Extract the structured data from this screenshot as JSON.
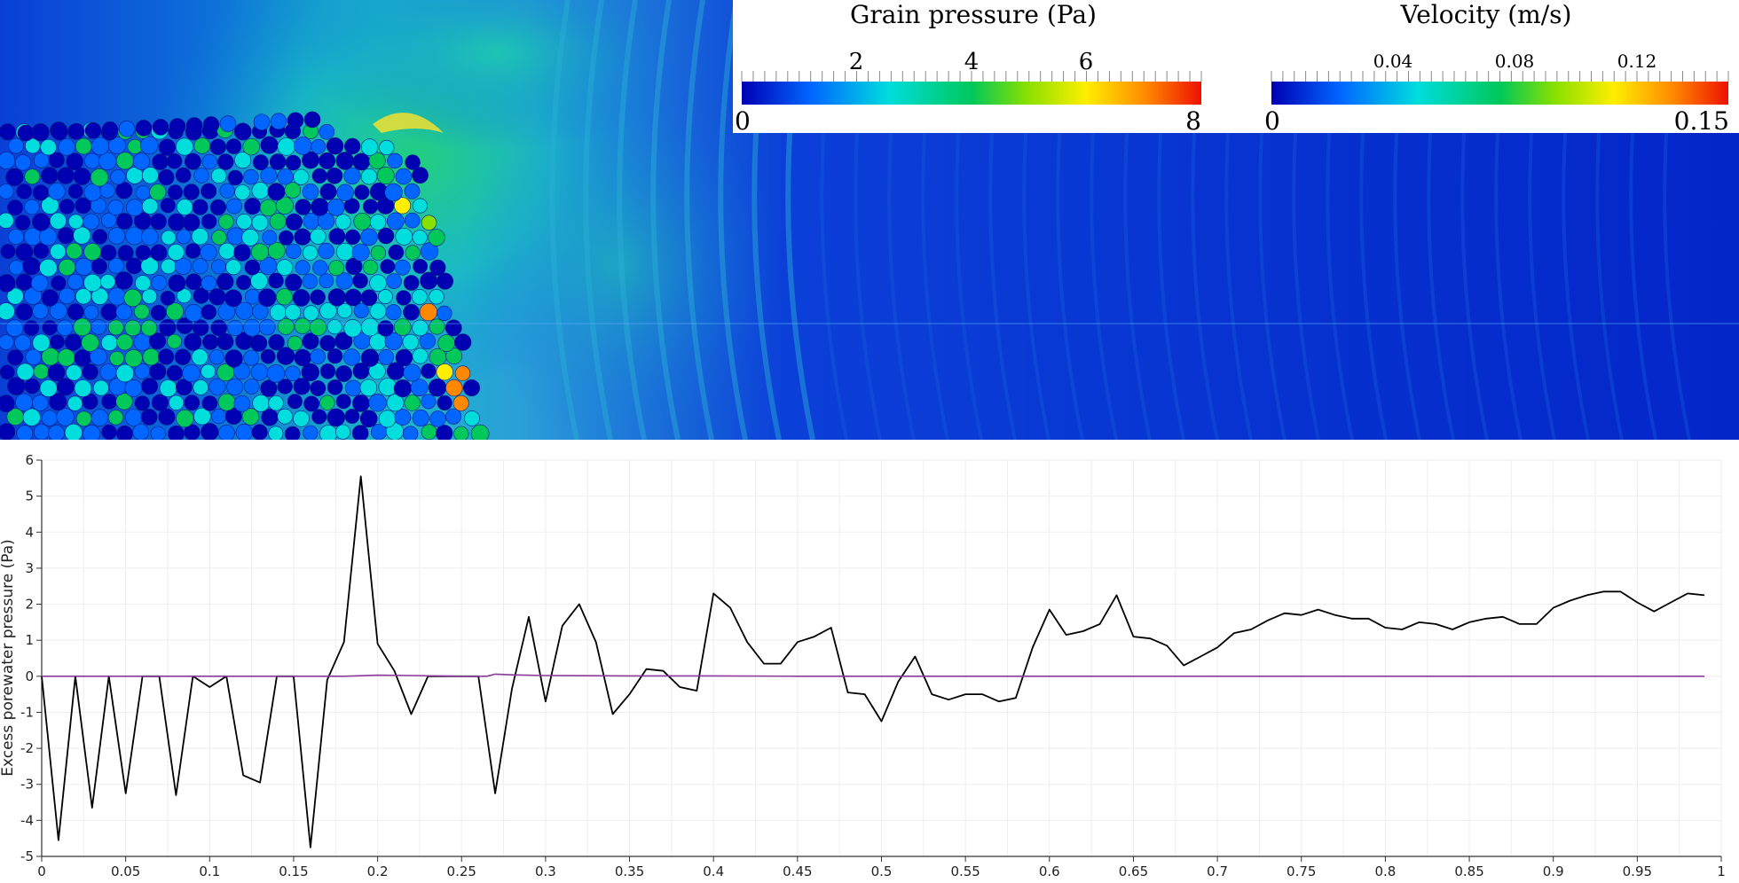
{
  "simulation_view": {
    "legends": [
      {
        "title": "Grain pressure (Pa)",
        "min_label": "0",
        "max_label": "8",
        "range": [
          0,
          8
        ],
        "ticks": [
          "2",
          "4",
          "6"
        ],
        "colors": [
          "#0000b3",
          "#0066ff",
          "#00dddd",
          "#00c85a",
          "#88e000",
          "#ffee00",
          "#ff8800",
          "#ee1100"
        ]
      },
      {
        "title": "Velocity (m/s)",
        "min_label": "0",
        "max_label": "0.15",
        "range": [
          0,
          0.15
        ],
        "ticks": [
          "0.04",
          "0.08",
          "0.12"
        ],
        "colors": [
          "#0000b3",
          "#0066ff",
          "#00dddd",
          "#00c85a",
          "#88e000",
          "#ffee00",
          "#ff8800",
          "#ee1100"
        ]
      }
    ]
  },
  "chart_data": {
    "type": "line",
    "title": "",
    "xlabel": "",
    "ylabel": "Excess porewater pressure (Pa)",
    "xlim": [
      0,
      1
    ],
    "ylim": [
      -5,
      6
    ],
    "grid": true,
    "x_tick_labels": [
      "0",
      "0.05",
      "0.1",
      "0.15",
      "0.2",
      "0.25",
      "0.3",
      "0.35",
      "0.4",
      "0.45",
      "0.5",
      "0.55",
      "0.6",
      "0.65",
      "0.7",
      "0.75",
      "0.8",
      "0.85",
      "0.9",
      "0.95",
      "1"
    ],
    "y_tick_labels": [
      "-5",
      "-4",
      "-3",
      "-2",
      "-1",
      "0",
      "1",
      "2",
      "3",
      "4",
      "5",
      "6"
    ],
    "series": [
      {
        "color": "#000000",
        "x": [
          0,
          0.01,
          0.02,
          0.03,
          0.04,
          0.05,
          0.06,
          0.07,
          0.08,
          0.09,
          0.1,
          0.11,
          0.12,
          0.13,
          0.14,
          0.15,
          0.16,
          0.17,
          0.18,
          0.19,
          0.2,
          0.21,
          0.22,
          0.23,
          0.24,
          0.25,
          0.26,
          0.27,
          0.28,
          0.29,
          0.3,
          0.31,
          0.32,
          0.33,
          0.34,
          0.35,
          0.36,
          0.37,
          0.38,
          0.39,
          0.4,
          0.41,
          0.42,
          0.43,
          0.44,
          0.45,
          0.46,
          0.47,
          0.48,
          0.49,
          0.5,
          0.51,
          0.52,
          0.53,
          0.54,
          0.55,
          0.56,
          0.57,
          0.58,
          0.59,
          0.6,
          0.61,
          0.62,
          0.63,
          0.64,
          0.65,
          0.66,
          0.67,
          0.68,
          0.69,
          0.7,
          0.71,
          0.72,
          0.73,
          0.74,
          0.75,
          0.76,
          0.77,
          0.78,
          0.79,
          0.8,
          0.81,
          0.82,
          0.83,
          0.84,
          0.85,
          0.86,
          0.87,
          0.88,
          0.89,
          0.9,
          0.91,
          0.92,
          0.93,
          0.94,
          0.95,
          0.96,
          0.97,
          0.98,
          0.99
        ],
        "y": [
          0,
          -4.55,
          0,
          -3.65,
          0,
          -3.25,
          0,
          0,
          -3.3,
          0,
          -0.3,
          0,
          -2.75,
          -2.95,
          0,
          0,
          -4.75,
          -0.1,
          0.95,
          5.55,
          0.9,
          0.15,
          -1.05,
          0,
          0,
          0,
          0,
          -3.25,
          -0.35,
          1.65,
          -0.7,
          1.4,
          2,
          0.95,
          -1.05,
          -0.5,
          0.2,
          0.15,
          -0.3,
          -0.4,
          2.3,
          1.9,
          0.95,
          0.35,
          0.35,
          0.95,
          1.1,
          1.35,
          -0.45,
          -0.5,
          -1.25,
          -0.15,
          0.55,
          -0.5,
          -0.65,
          -0.5,
          -0.5,
          -0.7,
          -0.6,
          0.8,
          1.85,
          1.15,
          1.25,
          1.45,
          2.25,
          1.1,
          1.05,
          0.85,
          0.3,
          0.55,
          0.8,
          1.2,
          1.3,
          1.55,
          1.75,
          1.7,
          1.85,
          1.7,
          1.6,
          1.6,
          1.35,
          1.3,
          1.5,
          1.45,
          1.3,
          1.5,
          1.6,
          1.65,
          1.45,
          1.45,
          1.9,
          2.1,
          2.25,
          2.35,
          2.35,
          2.05,
          1.8,
          2.05,
          2.3,
          2.25
        ]
      },
      {
        "color": "#8a3a9a",
        "x": [
          0,
          0.05,
          0.1,
          0.15,
          0.18,
          0.2,
          0.22,
          0.25,
          0.265,
          0.27,
          0.28,
          0.3,
          0.35,
          0.4,
          0.45,
          0.5,
          0.6,
          0.7,
          0.8,
          0.9,
          0.99
        ],
        "y": [
          0,
          0,
          0,
          0,
          0,
          0.03,
          0.02,
          0,
          0,
          0.06,
          0.04,
          0.02,
          0.01,
          0.01,
          0,
          0,
          0,
          0,
          0,
          0,
          0
        ]
      }
    ]
  }
}
